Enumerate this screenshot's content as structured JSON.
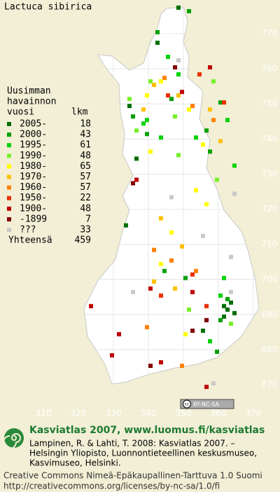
{
  "chart_data": {
    "type": "grid-map",
    "title": "Lactuca sibirica",
    "legend_heading": [
      "Uusimman",
      "havainnon",
      "vuosi"
    ],
    "count_heading": "lkm",
    "xticks": [
      310,
      320,
      330,
      340,
      350,
      360,
      370
    ],
    "yticks": [
      670,
      680,
      690,
      700,
      710,
      720,
      730,
      740,
      750,
      760,
      770
    ],
    "xlim": [
      310,
      370
    ],
    "ylim": [
      670,
      770
    ],
    "grid": true,
    "entries": [
      {
        "name": "2005-",
        "count": 18,
        "color": "#006e00",
        "squares": [
          [
            348,
            777
          ],
          [
            342,
            767
          ],
          [
            333,
            715
          ],
          [
            361,
            692
          ],
          [
            362,
            691
          ],
          [
            363,
            693
          ],
          [
            361,
            689
          ],
          [
            364,
            690
          ],
          [
            355,
            685
          ],
          [
            336,
            734
          ],
          [
            334,
            749
          ]
        ]
      },
      {
        "name": "2000-",
        "count": 43,
        "color": "#00a000",
        "squares": [
          [
            351,
            776
          ],
          [
            342,
            770
          ],
          [
            346,
            751
          ],
          [
            360,
            750
          ],
          [
            356,
            742
          ],
          [
            339,
            741
          ],
          [
            335,
            746
          ],
          [
            350,
            700
          ],
          [
            362,
            694
          ],
          [
            360,
            688
          ],
          [
            359,
            679
          ],
          [
            344,
            702
          ],
          [
            357,
            736
          ]
        ]
      },
      {
        "name": "1995-",
        "count": 61,
        "color": "#00d200",
        "squares": [
          [
            345,
            763
          ],
          [
            348,
            758
          ],
          [
            339,
            745
          ],
          [
            343,
            740
          ],
          [
            362,
            745
          ],
          [
            364,
            732
          ],
          [
            360,
            695
          ],
          [
            357,
            682
          ],
          [
            338,
            744
          ],
          [
            353,
            740
          ],
          [
            361,
            700
          ]
        ]
      },
      {
        "name": "1990-",
        "count": 48,
        "color": "#78f028",
        "squares": [
          [
            340,
            756
          ],
          [
            334,
            751
          ],
          [
            347,
            746
          ],
          [
            358,
            756
          ],
          [
            359,
            728
          ],
          [
            363,
            687
          ],
          [
            351,
            691
          ],
          [
            336,
            742
          ],
          [
            348,
            735
          ]
        ]
      },
      {
        "name": "1980-",
        "count": 65,
        "color": "#ffff00",
        "squares": [
          [
            339,
            752
          ],
          [
            343,
            756
          ],
          [
            351,
            748
          ],
          [
            355,
            738
          ],
          [
            343,
            704
          ],
          [
            346,
            713
          ],
          [
            356,
            721
          ],
          [
            350,
            684
          ],
          [
            340,
            736
          ],
          [
            353,
            725
          ]
        ]
      },
      {
        "name": "1970-",
        "count": 57,
        "color": "#ffc000",
        "squares": [
          [
            341,
            755
          ],
          [
            348,
            752
          ],
          [
            357,
            748
          ],
          [
            338,
            748
          ],
          [
            360,
            739
          ],
          [
            343,
            717
          ],
          [
            349,
            709
          ],
          [
            341,
            699
          ],
          [
            347,
            697
          ]
        ]
      },
      {
        "name": "1960-",
        "count": 57,
        "color": "#ff8000",
        "squares": [
          [
            344,
            757
          ],
          [
            352,
            749
          ],
          [
            358,
            745
          ],
          [
            341,
            708
          ],
          [
            339,
            686
          ],
          [
            346,
            705
          ],
          [
            353,
            702
          ],
          [
            349,
            675
          ]
        ]
      },
      {
        "name": "1950-",
        "count": 22,
        "color": "#e83000",
        "squares": [
          [
            354,
            758
          ],
          [
            345,
            752
          ],
          [
            361,
            750
          ],
          [
            352,
            701
          ],
          [
            343,
            695
          ],
          [
            356,
            692
          ]
        ]
      },
      {
        "name": "1900-",
        "count": 48,
        "color": "#c00000",
        "squares": [
          [
            349,
            753
          ],
          [
            357,
            760
          ],
          [
            336,
            728
          ],
          [
            340,
            697
          ],
          [
            352,
            696
          ],
          [
            331,
            684
          ],
          [
            343,
            676
          ],
          [
            356,
            669
          ],
          [
            323,
            692
          ],
          [
            329,
            678
          ]
        ]
      },
      {
        "name": "-1899",
        "count": 7,
        "color": "#800000",
        "squares": [
          [
            347,
            760
          ],
          [
            335,
            727
          ],
          [
            356,
            688
          ],
          [
            340,
            675
          ],
          [
            352,
            685
          ]
        ]
      },
      {
        "name": "???",
        "count": 33,
        "color": "#c8c8c8",
        "squares": [
          [
            348,
            762
          ],
          [
            364,
            724
          ],
          [
            346,
            723
          ],
          [
            355,
            712
          ],
          [
            335,
            696
          ],
          [
            363,
            696
          ],
          [
            358,
            670
          ],
          [
            363,
            706
          ]
        ]
      }
    ],
    "total_label": "Yhteensä",
    "total": 459,
    "cc_badge": "BY-NC-SA",
    "footer_title": "Kasviatlas 2007, www.luomus.fi/kasviatlas",
    "citation": [
      "Lampinen, R. & Lahti, T. 2008: Kasviatlas 2007. –",
      "Helsingin Yliopisto, Luonnontieteellinen keskusmuseo,",
      "Kasvimuseo, Helsinki."
    ],
    "license": [
      "Creative Commons Nimeä-Epäkaupallinen-Tarttuva 1.0 Suomi",
      "http://creativecommons.org/licenses/by-nc-sa/1.0/fi"
    ]
  }
}
